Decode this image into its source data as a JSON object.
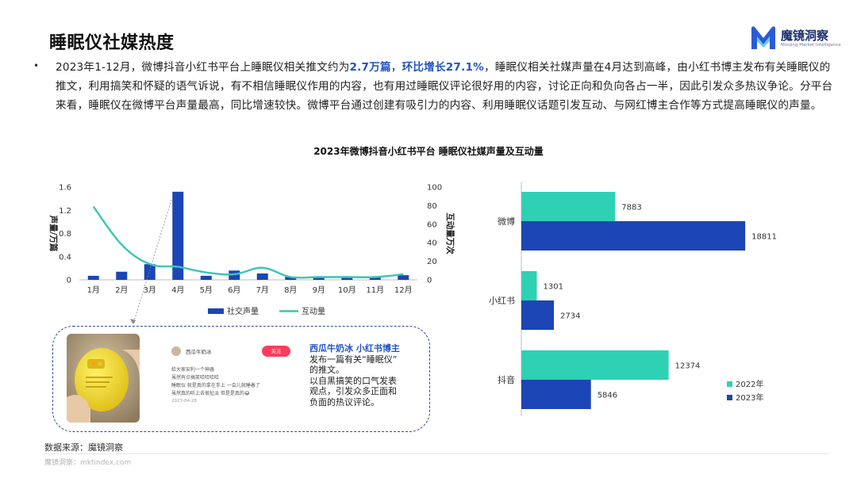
{
  "page": {
    "title": "睡眠仪社媒热度",
    "bullet": "•",
    "paragraph": {
      "p1": "2023年1-12月，微博抖音小红书平台上睡眠仪相关推文约为",
      "h1": "2.7万篇",
      "p2": "，",
      "h2": "环比增长27.1%",
      "p3": "，睡眠仪相关社媒声量在4月达到高峰，由小红书博主发布有关睡眠仪的推文，利用搞笑和怀疑的语气诉说，有不相信睡眠仪作用的内容，也有用过睡眠仪评论很好用的内容，讨论正向和负向各占一半，因此引发众多热议争论。分平台来看，睡眠仪在微博平台声量最高，同比增速较快。微博平台通过创建有吸引力的内容、利用睡眠仪话题引发互动、与网红博主合作等方式提高睡眠仪的声量。"
    },
    "chart_title": "2023年微博抖音小红书平台 睡眠仪社媒声量及互动量",
    "source": "数据来源：魔镜洞察",
    "watermark": "魔镜洞察：mktindex.com"
  },
  "logo": {
    "name": "魔镜洞察",
    "tagline": "Moojing Market Intelligence",
    "color_primary": "#2a5bd7",
    "color_secondary": "#4fc3e8"
  },
  "callout": {
    "post": {
      "username": "西瓜牛奶冰",
      "follow_label": "关注",
      "lines": [
        "给大家安利一个神器",
        "虽然有点搞笑哈哈哈哈",
        "睡眠仪 就是真的拿在手上 一会儿就睡着了",
        "虽然真的听上去很扯淡 但是是真的😂"
      ],
      "date": "2023-04-28"
    },
    "heading": "西瓜牛奶冰 小红书博主",
    "lines": [
      "发布一篇有关“睡眠仪”",
      "的推文。",
      "以自黑搞笑的口气发表",
      "观点，引发众多正面和",
      "负面的热议评论。"
    ]
  },
  "colors": {
    "bar_blue": "#1c45b5",
    "line_teal": "#3cc5b4",
    "bar_teal": "#2fd1b5",
    "accent_blue": "#2253c6",
    "callout_border": "#2e4a9a"
  },
  "chart_data": [
    {
      "type": "bar+line",
      "categories": [
        "1月",
        "2月",
        "3月",
        "4月",
        "5月",
        "6月",
        "7月",
        "8月",
        "9月",
        "10月",
        "11月",
        "12月"
      ],
      "series": [
        {
          "name": "社交声量",
          "kind": "bar",
          "axis": "left",
          "values": [
            0.07,
            0.14,
            0.27,
            1.52,
            0.07,
            0.16,
            0.11,
            0.05,
            0.05,
            0.05,
            0.06,
            0.08
          ]
        },
        {
          "name": "互动量",
          "kind": "line",
          "axis": "right",
          "values": [
            79,
            38,
            17,
            14,
            8,
            6,
            13,
            3,
            3,
            3,
            3,
            6
          ]
        }
      ],
      "ylabel_left": "声量/万篇",
      "ylabel_right": "互动量万次",
      "ylim_left": [
        0,
        1.6
      ],
      "yticks_left": [
        "0",
        "0.4",
        "0.8",
        "1.2",
        "1.6"
      ],
      "ylim_right": [
        0,
        100
      ],
      "yticks_right": [
        "0",
        "20",
        "40",
        "60",
        "80",
        "100"
      ],
      "grid": false,
      "legend": "bottom"
    },
    {
      "type": "bar",
      "orientation": "horizontal",
      "categories": [
        "微博",
        "小红书",
        "抖音"
      ],
      "series": [
        {
          "name": "2022年",
          "values": [
            7883,
            1301,
            12374
          ]
        },
        {
          "name": "2023年",
          "values": [
            18811,
            2734,
            5846
          ]
        }
      ],
      "xlim": [
        0,
        20000
      ],
      "grid": false,
      "legend": "bottom-right"
    }
  ]
}
